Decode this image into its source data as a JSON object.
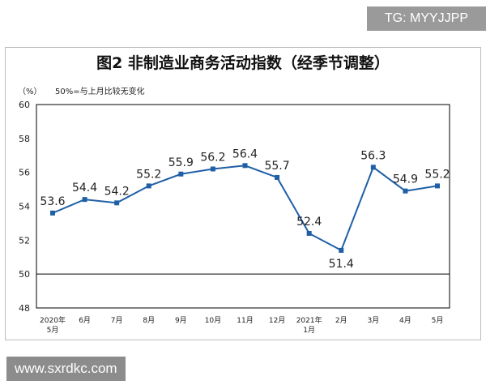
{
  "watermark_top": "TG: MYYJJPP",
  "watermark_bottom": "www.sxrdkc.com",
  "chart_data": {
    "type": "line",
    "title": "图2 非制造业商务活动指数（经季节调整）",
    "ylabel": "（%）",
    "annotation": "50%=与上月比较无变化",
    "categories": [
      [
        "2020年",
        "5月"
      ],
      [
        "6月"
      ],
      [
        "7月"
      ],
      [
        "8月"
      ],
      [
        "9月"
      ],
      [
        "10月"
      ],
      [
        "11月"
      ],
      [
        "12月"
      ],
      [
        "2021年",
        "1月"
      ],
      [
        "2月"
      ],
      [
        "3月"
      ],
      [
        "4月"
      ],
      [
        "5月"
      ]
    ],
    "series": [
      {
        "values": [
          53.6,
          54.4,
          54.2,
          55.2,
          55.9,
          56.2,
          56.4,
          55.7,
          52.4,
          51.4,
          56.3,
          54.9,
          55.2
        ]
      }
    ],
    "ylim": [
      48,
      60
    ],
    "yticks": [
      48,
      50,
      52,
      54,
      56,
      58,
      60
    ],
    "reference_line": 50,
    "grid": false,
    "legend": "none",
    "line_color": "#1f5fa6",
    "marker_color": "#1f5fa6"
  }
}
